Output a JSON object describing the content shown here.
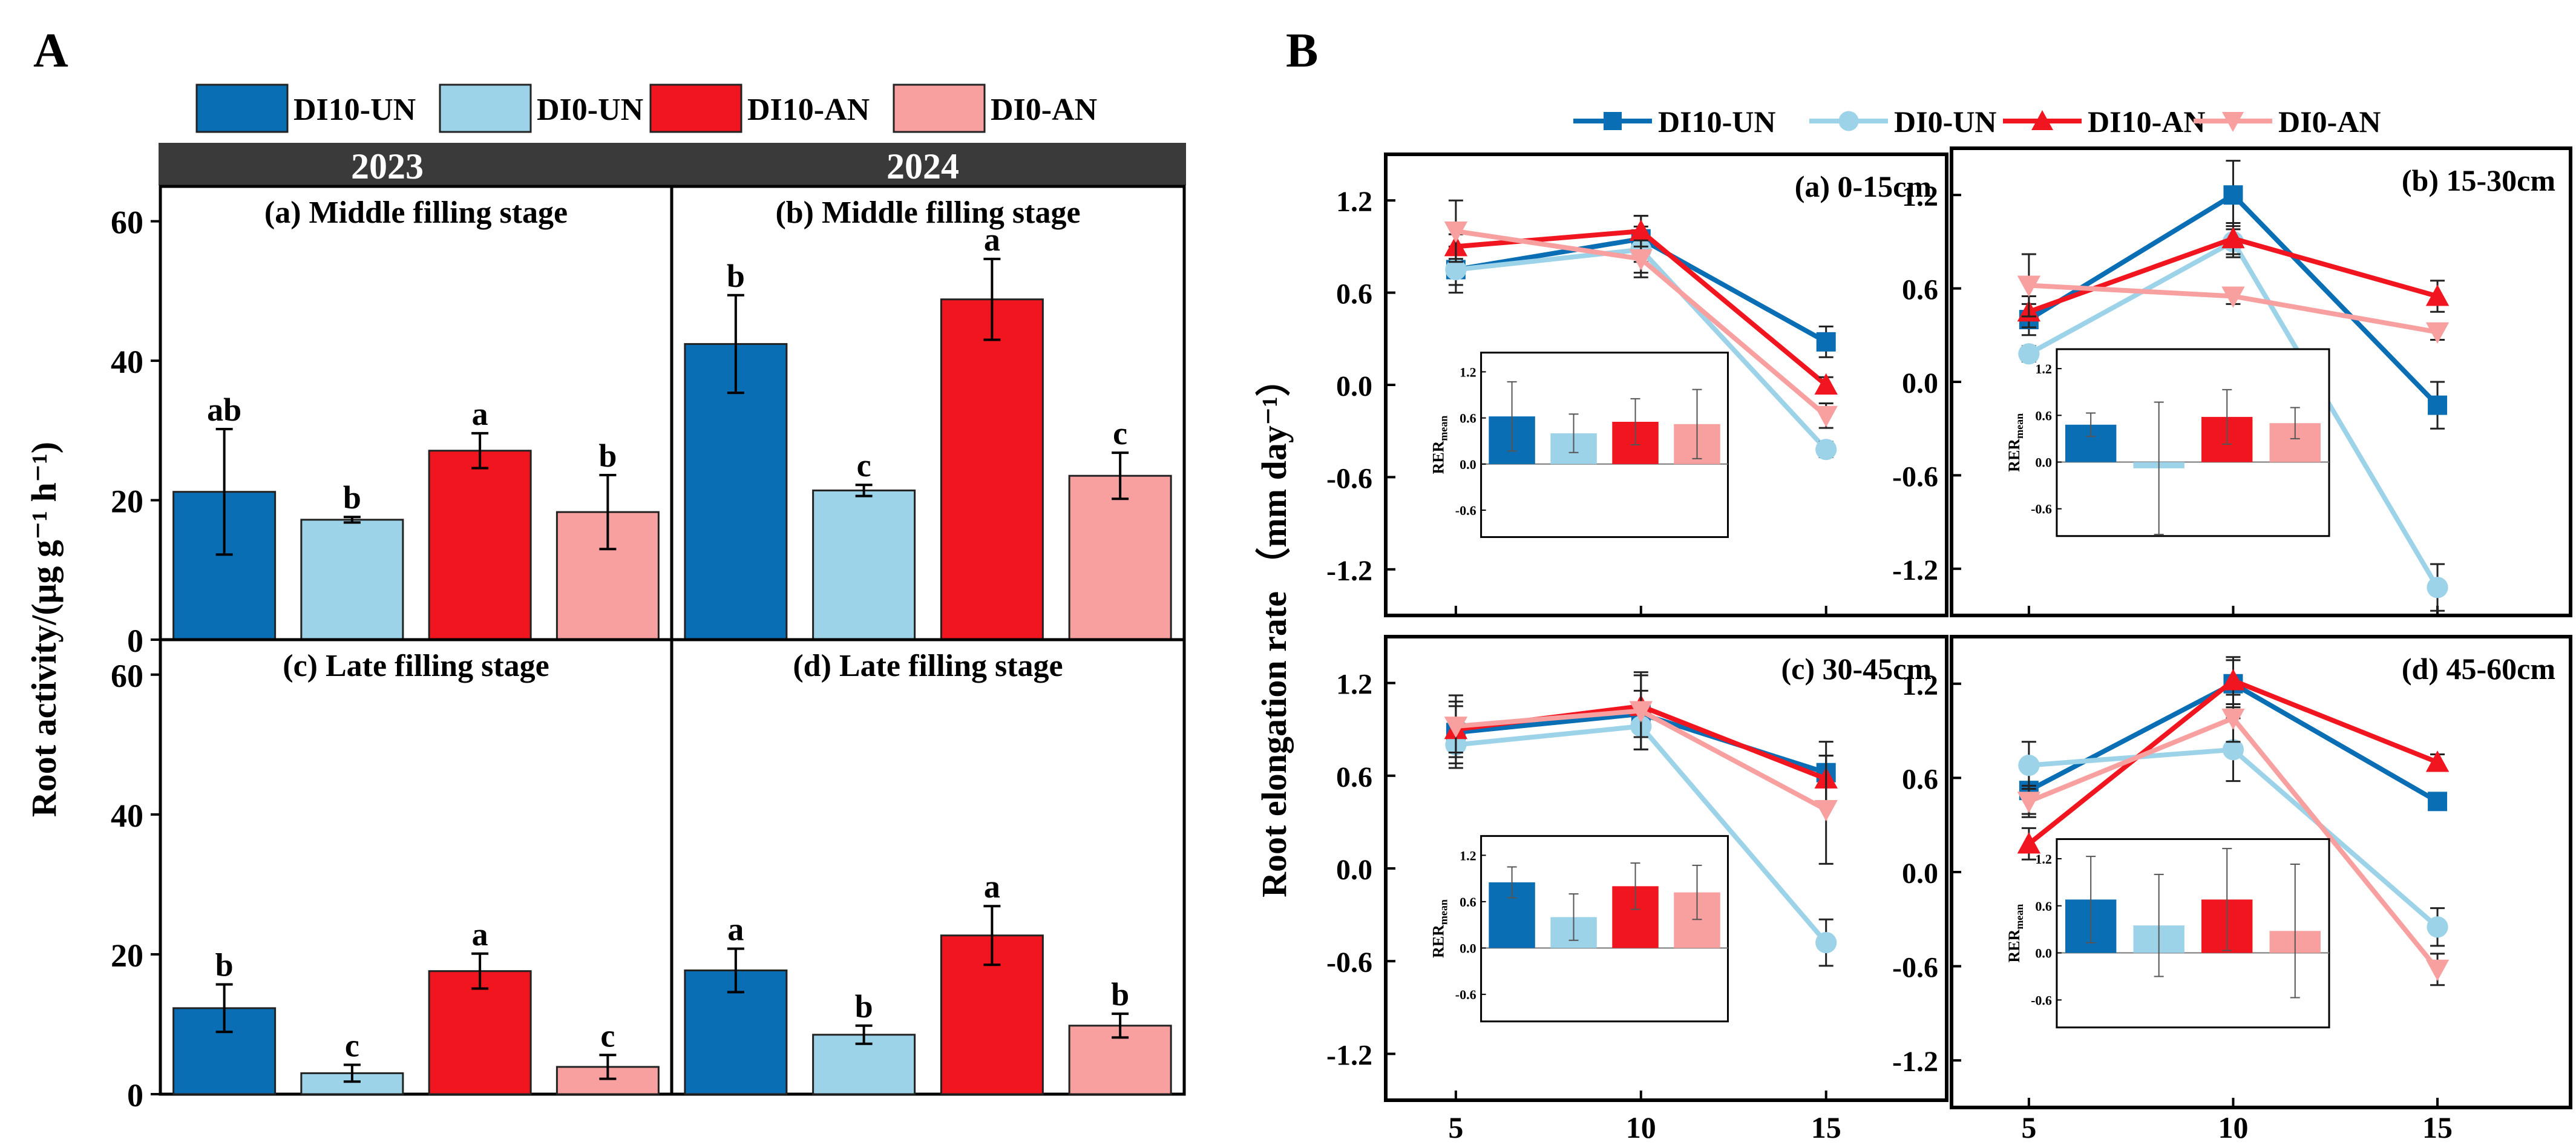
{
  "colors": {
    "DI10-UN": "#0A6EB4",
    "DI0-UN": "#9DD3E8",
    "DI10-AN": "#F0151E",
    "DI0-AN": "#F8A0A0",
    "header_bar": "#3A3A3A"
  },
  "panel_a": {
    "label": "A",
    "ylabel": "Root activity/(μg g⁻¹ h⁻¹)",
    "legend": [
      "DI10-UN",
      "DI0-UN",
      "DI10-AN",
      "DI0-AN"
    ],
    "years": [
      "2023",
      "2024"
    ],
    "ylim": [
      0,
      65
    ],
    "yticks": [
      0,
      20,
      40,
      60
    ],
    "ytick_labels": [
      "0",
      "20",
      "40",
      "60"
    ]
  },
  "panel_b": {
    "label": "B",
    "ylabel": "Root elongation rate （mm day⁻¹）",
    "legend": [
      "DI10-UN",
      "DI0-UN",
      "DI10-AN",
      "DI0-AN"
    ],
    "x": [
      5,
      10,
      15
    ],
    "xtick_labels": [
      "5",
      "10",
      "15"
    ],
    "ylim": [
      -1.5,
      1.5
    ],
    "yticks": [
      -1.2,
      -0.6,
      0.0,
      0.6,
      1.2
    ],
    "ytick_labels": [
      "-1.2",
      "-0.6",
      "0.0",
      "0.6",
      "1.2"
    ],
    "inset_ylabel": "RER",
    "inset_ylabel_sub": "mean",
    "inset_ytick_labels": [
      "1.2",
      "0.6",
      "0.0",
      "-0.6"
    ]
  },
  "chart_data": [
    {
      "type": "bar",
      "id": "A-a",
      "title": "(a) Middle filling stage",
      "year": "2023",
      "categories": [
        "DI10-UN",
        "DI0-UN",
        "DI10-AN",
        "DI0-AN"
      ],
      "values": [
        21.2,
        17.2,
        27.1,
        18.3
      ],
      "errors": [
        9.0,
        0.4,
        2.5,
        5.3
      ],
      "letters": [
        "ab",
        "b",
        "a",
        "b"
      ],
      "ylabel": "Root activity/(μg g⁻¹ h⁻¹)",
      "ylim": [
        0,
        65
      ]
    },
    {
      "type": "bar",
      "id": "A-b",
      "title": "(b) Middle filling stage",
      "year": "2024",
      "categories": [
        "DI10-UN",
        "DI0-UN",
        "DI10-AN",
        "DI0-AN"
      ],
      "values": [
        42.4,
        21.4,
        48.8,
        23.5
      ],
      "errors": [
        7.0,
        0.8,
        5.8,
        3.3
      ],
      "letters": [
        "b",
        "c",
        "a",
        "c"
      ],
      "ylim": [
        0,
        65
      ]
    },
    {
      "type": "bar",
      "id": "A-c",
      "title": "(c) Late filling stage",
      "year": "2023",
      "categories": [
        "DI10-UN",
        "DI0-UN",
        "DI10-AN",
        "DI0-AN"
      ],
      "values": [
        12.3,
        3.0,
        17.6,
        3.9
      ],
      "errors": [
        3.4,
        1.2,
        2.5,
        1.7
      ],
      "letters": [
        "b",
        "c",
        "a",
        "c"
      ],
      "ylim": [
        0,
        65
      ]
    },
    {
      "type": "bar",
      "id": "A-d",
      "title": "(d) Late filling stage",
      "year": "2024",
      "categories": [
        "DI10-UN",
        "DI0-UN",
        "DI10-AN",
        "DI0-AN"
      ],
      "values": [
        17.7,
        8.5,
        22.7,
        9.8
      ],
      "errors": [
        3.1,
        1.3,
        4.2,
        1.7
      ],
      "letters": [
        "a",
        "b",
        "a",
        "b"
      ],
      "ylim": [
        0,
        65
      ]
    },
    {
      "type": "line",
      "id": "B-a",
      "title": "(a) 0-15cm",
      "x": [
        5,
        10,
        15
      ],
      "ylim": [
        -1.5,
        1.5
      ],
      "ylabel": "Root elongation rate （mm day⁻¹）",
      "series": [
        {
          "name": "DI10-UN",
          "values": [
            0.75,
            0.95,
            0.28
          ],
          "errors": [
            0.15,
            0.15,
            0.1
          ]
        },
        {
          "name": "DI0-UN",
          "values": [
            0.75,
            0.88,
            -0.42
          ],
          "errors": [
            0.1,
            0.15,
            0.05
          ]
        },
        {
          "name": "DI10-AN",
          "values": [
            0.9,
            1.0,
            0.0
          ],
          "errors": [
            0.08,
            0.1,
            0.05
          ]
        },
        {
          "name": "DI0-AN",
          "values": [
            1.0,
            0.82,
            -0.2
          ],
          "errors": [
            0.2,
            0.12,
            0.08
          ]
        }
      ],
      "inset": {
        "values": [
          0.62,
          0.4,
          0.55,
          0.52
        ],
        "errors": [
          0.45,
          0.25,
          0.3,
          0.45
        ]
      }
    },
    {
      "type": "line",
      "id": "B-b",
      "title": "(b) 15-30cm",
      "x": [
        5,
        10,
        15
      ],
      "ylim": [
        -1.5,
        1.5
      ],
      "series": [
        {
          "name": "DI10-UN",
          "values": [
            0.4,
            1.2,
            -0.15
          ],
          "errors": [
            0.1,
            0.22,
            0.15
          ]
        },
        {
          "name": "DI0-UN",
          "values": [
            0.18,
            0.9,
            -1.32
          ],
          "errors": [
            0.05,
            0.1,
            0.15
          ]
        },
        {
          "name": "DI10-AN",
          "values": [
            0.45,
            0.92,
            0.55
          ],
          "errors": [
            0.1,
            0.1,
            0.1
          ]
        },
        {
          "name": "DI0-AN",
          "values": [
            0.62,
            0.55,
            0.32
          ],
          "errors": [
            0.2,
            0.05,
            0.05
          ]
        }
      ],
      "inset": {
        "values": [
          0.48,
          -0.08,
          0.58,
          0.5
        ],
        "errors": [
          0.15,
          0.85,
          0.35,
          0.2
        ]
      }
    },
    {
      "type": "line",
      "id": "B-c",
      "title": "(c) 30-45cm",
      "x": [
        5,
        10,
        15
      ],
      "ylim": [
        -1.5,
        1.5
      ],
      "series": [
        {
          "name": "DI10-UN",
          "values": [
            0.88,
            1.0,
            0.62
          ],
          "errors": [
            0.2,
            0.15,
            0.2
          ]
        },
        {
          "name": "DI0-UN",
          "values": [
            0.8,
            0.92,
            -0.48
          ],
          "errors": [
            0.15,
            0.15,
            0.15
          ]
        },
        {
          "name": "DI10-AN",
          "values": [
            0.9,
            1.05,
            0.58
          ],
          "errors": [
            0.15,
            0.2,
            0.15
          ]
        },
        {
          "name": "DI0-AN",
          "values": [
            0.92,
            1.02,
            0.38
          ],
          "errors": [
            0.2,
            0.25,
            0.35
          ]
        }
      ],
      "inset": {
        "values": [
          0.85,
          0.4,
          0.8,
          0.72
        ],
        "errors": [
          0.2,
          0.3,
          0.3,
          0.35
        ]
      }
    },
    {
      "type": "line",
      "id": "B-d",
      "title": "(d) 45-60cm",
      "x": [
        5,
        10,
        15
      ],
      "ylim": [
        -1.5,
        1.5
      ],
      "series": [
        {
          "name": "DI10-UN",
          "values": [
            0.52,
            1.2,
            0.45
          ],
          "errors": [
            0.15,
            0.15,
            0.05
          ]
        },
        {
          "name": "DI0-UN",
          "values": [
            0.68,
            0.78,
            -0.35
          ],
          "errors": [
            0.15,
            0.2,
            0.12
          ]
        },
        {
          "name": "DI10-AN",
          "values": [
            0.18,
            1.22,
            0.7
          ],
          "errors": [
            0.1,
            0.15,
            0.05
          ]
        },
        {
          "name": "DI0-AN",
          "values": [
            0.45,
            0.98,
            -0.62
          ],
          "errors": [
            0.1,
            0.15,
            0.1
          ]
        }
      ],
      "inset": {
        "values": [
          0.68,
          0.35,
          0.68,
          0.28
        ],
        "errors": [
          0.55,
          0.65,
          0.65,
          0.85
        ]
      }
    }
  ]
}
